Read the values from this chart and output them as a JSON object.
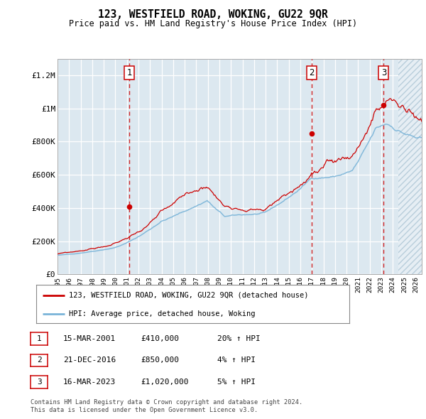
{
  "title": "123, WESTFIELD ROAD, WOKING, GU22 9QR",
  "subtitle": "Price paid vs. HM Land Registry's House Price Index (HPI)",
  "ylabel_ticks": [
    "£0",
    "£200K",
    "£400K",
    "£600K",
    "£800K",
    "£1M",
    "£1.2M"
  ],
  "ytick_vals": [
    0,
    200000,
    400000,
    600000,
    800000,
    1000000,
    1200000
  ],
  "ylim": [
    0,
    1300000
  ],
  "xlim_start": 1995.0,
  "xlim_end": 2026.5,
  "x_ticks": [
    1995,
    1996,
    1997,
    1998,
    1999,
    2000,
    2001,
    2002,
    2003,
    2004,
    2005,
    2006,
    2007,
    2008,
    2009,
    2010,
    2011,
    2012,
    2013,
    2014,
    2015,
    2016,
    2017,
    2018,
    2019,
    2020,
    2021,
    2022,
    2023,
    2024,
    2025,
    2026
  ],
  "sale_markers": [
    {
      "num": 1,
      "year": 2001.21,
      "price": 410000,
      "date": "15-MAR-2001",
      "pct": "20%",
      "dir": "↑"
    },
    {
      "num": 2,
      "year": 2016.97,
      "price": 850000,
      "date": "21-DEC-2016",
      "pct": "4%",
      "dir": "↑"
    },
    {
      "num": 3,
      "year": 2023.21,
      "price": 1020000,
      "date": "16-MAR-2023",
      "pct": "5%",
      "dir": "↑"
    }
  ],
  "legend_line1": "123, WESTFIELD ROAD, WOKING, GU22 9QR (detached house)",
  "legend_line2": "HPI: Average price, detached house, Woking",
  "table_rows": [
    [
      "1",
      "15-MAR-2001",
      "£410,000",
      "20% ↑ HPI"
    ],
    [
      "2",
      "21-DEC-2016",
      "£850,000",
      "4% ↑ HPI"
    ],
    [
      "3",
      "16-MAR-2023",
      "£1,020,000",
      "5% ↑ HPI"
    ]
  ],
  "footnote1": "Contains HM Land Registry data © Crown copyright and database right 2024.",
  "footnote2": "This data is licensed under the Open Government Licence v3.0.",
  "hpi_color": "#7ab4d8",
  "price_color": "#cc0000",
  "bg_color": "#dce8f0",
  "vline_color": "#cc0000",
  "marker_box_color": "#cc0000",
  "hatch_start": 2024.5
}
